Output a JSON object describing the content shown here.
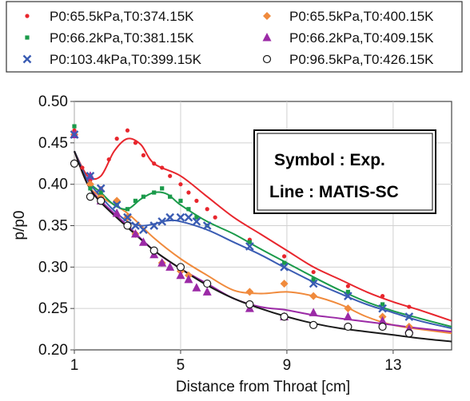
{
  "chart_data": {
    "type": "scatter",
    "title": "",
    "xlabel": "Distance from Throat [cm]",
    "ylabel": "p/p0",
    "xlim": [
      1,
      15.2
    ],
    "ylim": [
      0.2,
      0.5
    ],
    "xticks": [
      1,
      5,
      9,
      13
    ],
    "xtick_labels": [
      "1",
      "5",
      "9",
      "13"
    ],
    "yticks": [
      0.2,
      0.25,
      0.3,
      0.35,
      0.4,
      0.45,
      0.5
    ],
    "ytick_labels": [
      "0.20",
      "0.25",
      "0.30",
      "0.35",
      "0.40",
      "0.45",
      "0.50"
    ],
    "grid": true,
    "legend_position": "top",
    "annotation": [
      "Symbol : Exp.",
      "Line : MATIS-SC"
    ],
    "series": [
      {
        "name": "P0:65.5kPa,T0:374.15K",
        "marker": "dot",
        "color": "#e8262d",
        "points": [
          [
            1,
            0.465
          ],
          [
            1.3,
            0.42
          ],
          [
            1.6,
            0.405
          ],
          [
            2,
            0.395
          ],
          [
            2.3,
            0.43
          ],
          [
            2.6,
            0.455
          ],
          [
            3,
            0.465
          ],
          [
            3.3,
            0.45
          ],
          [
            3.6,
            0.435
          ],
          [
            4,
            0.425
          ],
          [
            4.3,
            0.42
          ],
          [
            4.6,
            0.41
          ],
          [
            5,
            0.4
          ],
          [
            5.3,
            0.39
          ],
          [
            5.6,
            0.38
          ],
          [
            6,
            0.37
          ],
          [
            6.3,
            0.36
          ],
          [
            7.6,
            0.333
          ],
          [
            8.9,
            0.313
          ],
          [
            10,
            0.294
          ],
          [
            11.3,
            0.277
          ],
          [
            12.6,
            0.265
          ],
          [
            13.6,
            0.252
          ]
        ],
        "line": [
          [
            1,
            0.44
          ],
          [
            1.5,
            0.41
          ],
          [
            2,
            0.41
          ],
          [
            2.5,
            0.44
          ],
          [
            3,
            0.455
          ],
          [
            3.5,
            0.448
          ],
          [
            4,
            0.425
          ],
          [
            5,
            0.41
          ],
          [
            6,
            0.385
          ],
          [
            7,
            0.36
          ],
          [
            8,
            0.34
          ],
          [
            9,
            0.32
          ],
          [
            10,
            0.3
          ],
          [
            11,
            0.285
          ],
          [
            12,
            0.27
          ],
          [
            13,
            0.258
          ],
          [
            14,
            0.248
          ],
          [
            15.2,
            0.235
          ]
        ]
      },
      {
        "name": "P0:65.5kPa,T0:400.15K",
        "marker": "diamond",
        "color": "#f08a3c",
        "points": [
          [
            1,
            0.46
          ],
          [
            1.6,
            0.4
          ],
          [
            2,
            0.385
          ],
          [
            2.6,
            0.38
          ],
          [
            3,
            0.36
          ],
          [
            3.3,
            0.34
          ],
          [
            4,
            0.32
          ],
          [
            4.3,
            0.305
          ],
          [
            5,
            0.295
          ],
          [
            5.3,
            0.29
          ],
          [
            6,
            0.28
          ],
          [
            7.6,
            0.27
          ],
          [
            8.9,
            0.28
          ],
          [
            10,
            0.265
          ],
          [
            11.3,
            0.25
          ],
          [
            12.6,
            0.24
          ],
          [
            13.6,
            0.228
          ]
        ],
        "line": [
          [
            1,
            0.44
          ],
          [
            1.5,
            0.4
          ],
          [
            2,
            0.385
          ],
          [
            3,
            0.365
          ],
          [
            4,
            0.335
          ],
          [
            5,
            0.31
          ],
          [
            6,
            0.29
          ],
          [
            7,
            0.272
          ],
          [
            8,
            0.268
          ],
          [
            9,
            0.27
          ],
          [
            10,
            0.265
          ],
          [
            11,
            0.255
          ],
          [
            12,
            0.24
          ],
          [
            13,
            0.23
          ],
          [
            14,
            0.225
          ],
          [
            15.2,
            0.22
          ]
        ]
      },
      {
        "name": "P0:66.2kPa,T0:381.15K",
        "marker": "square",
        "color": "#1a9a4a",
        "points": [
          [
            1,
            0.47
          ],
          [
            1.6,
            0.395
          ],
          [
            2,
            0.39
          ],
          [
            2.6,
            0.375
          ],
          [
            3,
            0.37
          ],
          [
            3.3,
            0.38
          ],
          [
            3.6,
            0.385
          ],
          [
            4,
            0.39
          ],
          [
            4.3,
            0.395
          ],
          [
            4.6,
            0.385
          ],
          [
            5,
            0.38
          ],
          [
            5.3,
            0.37
          ],
          [
            5.6,
            0.36
          ],
          [
            6,
            0.35
          ],
          [
            7.6,
            0.33
          ],
          [
            8.9,
            0.305
          ],
          [
            10,
            0.285
          ],
          [
            11.3,
            0.27
          ],
          [
            12.6,
            0.255
          ],
          [
            13.6,
            0.24
          ]
        ],
        "line": [
          [
            1,
            0.44
          ],
          [
            1.5,
            0.405
          ],
          [
            2,
            0.39
          ],
          [
            2.5,
            0.375
          ],
          [
            3,
            0.37
          ],
          [
            3.5,
            0.382
          ],
          [
            4,
            0.39
          ],
          [
            4.5,
            0.388
          ],
          [
            5,
            0.375
          ],
          [
            6,
            0.355
          ],
          [
            7,
            0.34
          ],
          [
            8,
            0.322
          ],
          [
            9,
            0.305
          ],
          [
            10,
            0.288
          ],
          [
            11,
            0.272
          ],
          [
            12,
            0.258
          ],
          [
            13,
            0.247
          ],
          [
            14,
            0.238
          ],
          [
            15.2,
            0.228
          ]
        ]
      },
      {
        "name": "P0:66.2kPa,T0:409.15K",
        "marker": "triangle",
        "color": "#9b2aa6",
        "points": [
          [
            1,
            0.46
          ],
          [
            1.6,
            0.41
          ],
          [
            2,
            0.38
          ],
          [
            2.6,
            0.365
          ],
          [
            3.3,
            0.34
          ],
          [
            3.6,
            0.33
          ],
          [
            4,
            0.315
          ],
          [
            4.3,
            0.305
          ],
          [
            4.6,
            0.3
          ],
          [
            5,
            0.29
          ],
          [
            5.3,
            0.285
          ],
          [
            5.6,
            0.275
          ],
          [
            6,
            0.27
          ],
          [
            7.6,
            0.25
          ],
          [
            8.9,
            0.24
          ],
          [
            10,
            0.245
          ],
          [
            11.3,
            0.24
          ],
          [
            12.6,
            0.235
          ],
          [
            13.6,
            0.225
          ]
        ],
        "line": [
          [
            1,
            0.44
          ],
          [
            1.5,
            0.4
          ],
          [
            2,
            0.38
          ],
          [
            3,
            0.35
          ],
          [
            4,
            0.32
          ],
          [
            5,
            0.298
          ],
          [
            6,
            0.28
          ],
          [
            7,
            0.262
          ],
          [
            8,
            0.252
          ],
          [
            9,
            0.248
          ],
          [
            10,
            0.242
          ],
          [
            11,
            0.238
          ],
          [
            12,
            0.234
          ],
          [
            13,
            0.23
          ],
          [
            14,
            0.226
          ],
          [
            15.2,
            0.222
          ]
        ]
      },
      {
        "name": "P0:103.4kPa,T0:399.15K",
        "marker": "x",
        "color": "#3a5cb3",
        "points": [
          [
            1,
            0.46
          ],
          [
            1.6,
            0.41
          ],
          [
            2,
            0.395
          ],
          [
            2.6,
            0.375
          ],
          [
            3,
            0.36
          ],
          [
            3.3,
            0.35
          ],
          [
            3.6,
            0.345
          ],
          [
            4,
            0.35
          ],
          [
            4.3,
            0.355
          ],
          [
            4.6,
            0.36
          ],
          [
            5,
            0.36
          ],
          [
            5.3,
            0.36
          ],
          [
            5.6,
            0.355
          ],
          [
            6,
            0.35
          ],
          [
            7.6,
            0.325
          ],
          [
            8.9,
            0.3
          ],
          [
            10,
            0.28
          ],
          [
            11.3,
            0.265
          ],
          [
            12.6,
            0.25
          ],
          [
            13.6,
            0.24
          ]
        ],
        "line": [
          [
            1,
            0.44
          ],
          [
            1.5,
            0.405
          ],
          [
            2,
            0.385
          ],
          [
            2.5,
            0.368
          ],
          [
            3,
            0.355
          ],
          [
            3.5,
            0.35
          ],
          [
            4,
            0.352
          ],
          [
            4.5,
            0.356
          ],
          [
            5,
            0.355
          ],
          [
            6,
            0.345
          ],
          [
            7,
            0.33
          ],
          [
            8,
            0.315
          ],
          [
            9,
            0.298
          ],
          [
            10,
            0.282
          ],
          [
            11,
            0.268
          ],
          [
            12,
            0.255
          ],
          [
            13,
            0.245
          ],
          [
            14,
            0.235
          ],
          [
            15.2,
            0.226
          ]
        ]
      },
      {
        "name": "P0:96.5kPa,T0:426.15K",
        "marker": "circle",
        "color": "#1a1a1a",
        "points": [
          [
            1,
            0.425
          ],
          [
            1.6,
            0.385
          ],
          [
            2,
            0.38
          ],
          [
            3,
            0.35
          ],
          [
            4,
            0.32
          ],
          [
            5,
            0.3
          ],
          [
            6,
            0.28
          ],
          [
            7.6,
            0.255
          ],
          [
            8.9,
            0.24
          ],
          [
            10,
            0.23
          ],
          [
            11.3,
            0.228
          ],
          [
            12.6,
            0.228
          ],
          [
            13.6,
            0.22
          ]
        ],
        "line": [
          [
            1,
            0.44
          ],
          [
            1.5,
            0.4
          ],
          [
            2,
            0.378
          ],
          [
            3,
            0.348
          ],
          [
            4,
            0.32
          ],
          [
            5,
            0.298
          ],
          [
            6,
            0.278
          ],
          [
            7,
            0.262
          ],
          [
            8,
            0.25
          ],
          [
            9,
            0.24
          ],
          [
            10,
            0.232
          ],
          [
            11,
            0.226
          ],
          [
            12,
            0.222
          ],
          [
            13,
            0.218
          ],
          [
            14,
            0.214
          ],
          [
            15.2,
            0.21
          ]
        ]
      }
    ]
  }
}
